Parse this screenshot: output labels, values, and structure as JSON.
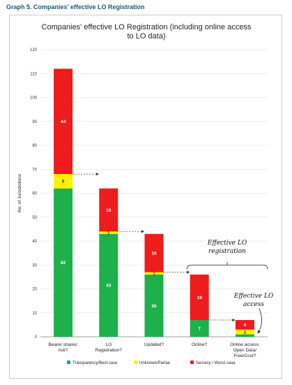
{
  "caption": "Graph 5. Companies’ effective LO Registration",
  "chart_data": {
    "type": "bar",
    "stacked": true,
    "title_lines": [
      "Companies' effective LO Registration  (including online access",
      "to LO data)"
    ],
    "ylabel": "No. of Jurisdictions",
    "xlabel": "",
    "ylim": [
      0,
      120
    ],
    "yticks": [
      0,
      10,
      20,
      30,
      40,
      50,
      60,
      70,
      80,
      90,
      100,
      110,
      120
    ],
    "grid": true,
    "legend_position": "bottom",
    "categories": [
      [
        "Bearer shares'",
        "risk?"
      ],
      [
        "LO",
        "Registration?"
      ],
      [
        "Updated?"
      ],
      [
        "Online?"
      ],
      [
        "Online access:",
        "Open Data/",
        "Free/Cost?"
      ]
    ],
    "series": [
      {
        "name": "Transparency/Best case",
        "color": "#1db04b",
        "values": [
          62,
          43,
          26,
          7,
          1
        ],
        "labels": [
          "62",
          "43",
          "26",
          "7",
          ""
        ]
      },
      {
        "name": "Unknown/Partial",
        "color": "#fff200",
        "values": [
          6,
          1,
          1,
          0,
          2
        ],
        "labels": [
          "6",
          "1",
          "1",
          "",
          "2"
        ]
      },
      {
        "name": "Secrecy / Worst case",
        "color": "#ee1c1c",
        "values": [
          44,
          18,
          16,
          19,
          4
        ],
        "labels": [
          "44",
          "18",
          "16",
          "19",
          "4"
        ]
      }
    ],
    "annotations": [
      {
        "lines": [
          "Effective LO",
          "registration"
        ]
      },
      {
        "lines": [
          "Effective LO",
          "access"
        ]
      }
    ]
  }
}
